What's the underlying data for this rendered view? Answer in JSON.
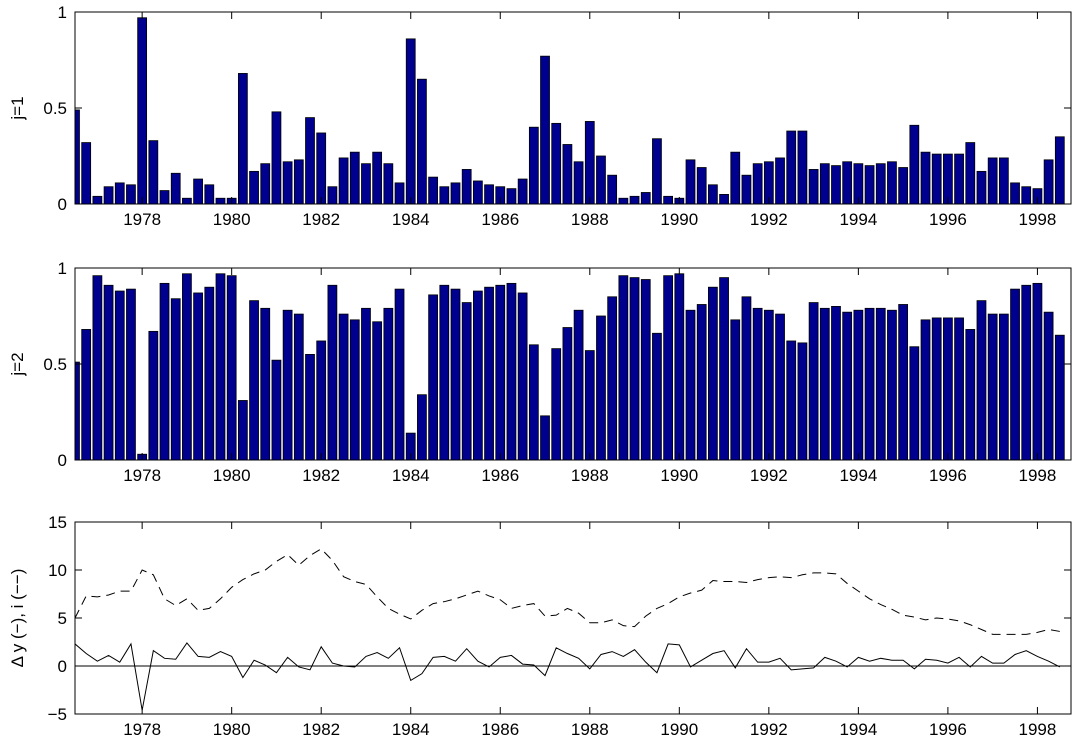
{
  "chart_data": [
    {
      "type": "bar",
      "ylabel": "j=1",
      "ylim": [
        0,
        1
      ],
      "yticks": [
        0,
        0.5,
        1
      ],
      "ytick_labels": [
        "0",
        "0.5",
        "1"
      ],
      "xlim": [
        1976.5,
        1998.75
      ],
      "xticks": [
        1978,
        1980,
        1982,
        1984,
        1986,
        1988,
        1990,
        1992,
        1994,
        1996,
        1998
      ],
      "xtick_labels": [
        "1978",
        "1980",
        "1982",
        "1984",
        "1986",
        "1988",
        "1990",
        "1992",
        "1994",
        "1996",
        "1998"
      ],
      "bar_color": "#00008f",
      "x_start": 1976.5,
      "x_step": 0.25,
      "values": [
        0.49,
        0.32,
        0.04,
        0.09,
        0.11,
        0.1,
        0.97,
        0.33,
        0.07,
        0.16,
        0.03,
        0.13,
        0.1,
        0.03,
        0.03,
        0.68,
        0.17,
        0.21,
        0.48,
        0.22,
        0.23,
        0.45,
        0.37,
        0.09,
        0.24,
        0.27,
        0.21,
        0.27,
        0.21,
        0.11,
        0.86,
        0.65,
        0.14,
        0.09,
        0.11,
        0.18,
        0.12,
        0.1,
        0.09,
        0.08,
        0.13,
        0.4,
        0.77,
        0.42,
        0.31,
        0.22,
        0.43,
        0.25,
        0.15,
        0.03,
        0.04,
        0.06,
        0.34,
        0.04,
        0.03,
        0.23,
        0.19,
        0.1,
        0.05,
        0.27,
        0.15,
        0.21,
        0.22,
        0.24,
        0.38,
        0.38,
        0.18,
        0.21,
        0.2,
        0.22,
        0.21,
        0.2,
        0.21,
        0.22,
        0.19,
        0.41,
        0.27,
        0.26,
        0.26,
        0.26,
        0.32,
        0.17,
        0.24,
        0.24,
        0.11,
        0.09,
        0.08,
        0.23,
        0.35
      ]
    },
    {
      "type": "bar",
      "ylabel": "j=2",
      "ylim": [
        0,
        1
      ],
      "yticks": [
        0,
        0.5,
        1
      ],
      "ytick_labels": [
        "0",
        "0.5",
        "1"
      ],
      "xlim": [
        1976.5,
        1998.75
      ],
      "xticks": [
        1978,
        1980,
        1982,
        1984,
        1986,
        1988,
        1990,
        1992,
        1994,
        1996,
        1998
      ],
      "xtick_labels": [
        "1978",
        "1980",
        "1982",
        "1984",
        "1986",
        "1988",
        "1990",
        "1992",
        "1994",
        "1996",
        "1998"
      ],
      "bar_color": "#00008f",
      "x_start": 1976.5,
      "x_step": 0.25,
      "values": [
        0.51,
        0.68,
        0.96,
        0.91,
        0.88,
        0.89,
        0.03,
        0.67,
        0.92,
        0.84,
        0.97,
        0.87,
        0.9,
        0.97,
        0.96,
        0.31,
        0.83,
        0.79,
        0.52,
        0.78,
        0.76,
        0.55,
        0.62,
        0.91,
        0.76,
        0.73,
        0.79,
        0.72,
        0.79,
        0.89,
        0.14,
        0.34,
        0.86,
        0.91,
        0.89,
        0.82,
        0.88,
        0.9,
        0.91,
        0.92,
        0.87,
        0.6,
        0.23,
        0.58,
        0.69,
        0.78,
        0.57,
        0.75,
        0.85,
        0.96,
        0.95,
        0.94,
        0.66,
        0.96,
        0.97,
        0.78,
        0.81,
        0.9,
        0.95,
        0.73,
        0.85,
        0.79,
        0.78,
        0.76,
        0.62,
        0.61,
        0.82,
        0.79,
        0.8,
        0.77,
        0.78,
        0.79,
        0.79,
        0.78,
        0.81,
        0.59,
        0.73,
        0.74,
        0.74,
        0.74,
        0.68,
        0.83,
        0.76,
        0.76,
        0.89,
        0.91,
        0.92,
        0.77,
        0.65
      ]
    },
    {
      "type": "line",
      "ylabel": "Δ y (−), i (−−)",
      "ylim": [
        -5,
        15
      ],
      "yticks": [
        -5,
        0,
        5,
        10,
        15
      ],
      "ytick_labels": [
        "−5",
        "0",
        "5",
        "10",
        "15"
      ],
      "xlim": [
        1976.5,
        1998.75
      ],
      "xticks": [
        1978,
        1980,
        1982,
        1984,
        1986,
        1988,
        1990,
        1992,
        1994,
        1996,
        1998
      ],
      "xtick_labels": [
        "1978",
        "1980",
        "1982",
        "1984",
        "1986",
        "1988",
        "1990",
        "1992",
        "1994",
        "1996",
        "1998"
      ],
      "zero_line": true,
      "x_start": 1976.5,
      "x_step": 0.25,
      "series": [
        {
          "style": "dashed",
          "values": [
            5.0,
            7.3,
            7.2,
            7.4,
            7.8,
            7.8,
            10.0,
            9.5,
            7.0,
            6.3,
            7.0,
            5.8,
            6.0,
            7.0,
            8.2,
            9.0,
            9.6,
            10.0,
            10.9,
            11.6,
            10.5,
            11.5,
            12.2,
            11.0,
            9.3,
            8.8,
            8.5,
            7.2,
            6.0,
            5.4,
            4.9,
            5.8,
            6.5,
            6.7,
            7.0,
            7.4,
            7.8,
            7.3,
            6.9,
            6.0,
            6.3,
            6.5,
            5.2,
            5.3,
            6.0,
            5.5,
            4.5,
            4.5,
            4.8,
            4.2,
            4.1,
            5.2,
            6.0,
            6.5,
            7.2,
            7.6,
            7.9,
            8.9,
            8.8,
            8.8,
            8.7,
            9.0,
            9.2,
            9.3,
            9.2,
            9.5,
            9.7,
            9.7,
            9.6,
            8.6,
            7.8,
            7.0,
            6.4,
            5.9,
            5.3,
            5.1,
            4.8,
            5.0,
            4.9,
            4.7,
            4.3,
            3.8,
            3.3,
            3.3,
            3.3,
            3.3,
            3.5,
            3.8,
            3.6
          ]
        },
        {
          "style": "solid",
          "values": [
            2.3,
            1.3,
            0.5,
            1.1,
            0.4,
            2.3,
            -4.6,
            1.6,
            0.8,
            0.7,
            2.4,
            1.0,
            0.9,
            1.5,
            1.0,
            -1.2,
            0.6,
            0.1,
            -0.7,
            0.9,
            -0.1,
            -0.4,
            2.0,
            0.3,
            0.0,
            -0.1,
            1.0,
            1.4,
            0.8,
            1.9,
            -1.5,
            -0.8,
            0.9,
            1.0,
            0.5,
            1.8,
            0.5,
            -0.1,
            0.9,
            1.1,
            0.2,
            0.1,
            -1.0,
            1.9,
            1.3,
            0.8,
            -0.3,
            1.2,
            1.5,
            1.0,
            1.7,
            0.4,
            -0.7,
            2.3,
            2.2,
            -0.1,
            0.6,
            1.3,
            1.6,
            -0.2,
            1.8,
            0.4,
            0.4,
            0.8,
            -0.4,
            -0.3,
            -0.2,
            0.9,
            0.5,
            -0.1,
            0.9,
            0.5,
            0.8,
            0.6,
            0.6,
            -0.3,
            0.7,
            0.6,
            0.3,
            0.9,
            -0.1,
            1.0,
            0.3,
            0.3,
            1.2,
            1.6,
            1.0,
            0.5,
            -0.1
          ]
        }
      ]
    }
  ]
}
